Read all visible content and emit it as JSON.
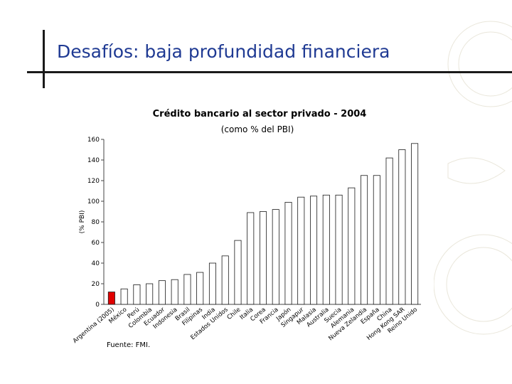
{
  "slide": {
    "title": "Desafíos: baja profundidad financiera",
    "source": "Fuente: FMI."
  },
  "chart_data": {
    "type": "bar",
    "title": "Crédito bancario al sector privado - 2004",
    "subtitle": "(como % del PBI)",
    "ylabel": "(% PBI)",
    "xlabel": "",
    "ylim": [
      0,
      160
    ],
    "yticks": [
      0,
      20,
      40,
      60,
      80,
      100,
      120,
      140,
      160
    ],
    "grid": false,
    "categories": [
      "Argentina (2005)",
      "México",
      "Perú",
      "Colombia",
      "Ecuador",
      "Indonesia",
      "Brasil",
      "Filipinas",
      "India",
      "Estados Unidos",
      "Chile",
      "Italia",
      "Corea",
      "Francia",
      "Japón",
      "Singapur",
      "Malasia",
      "Australia",
      "Suecia",
      "Alemania",
      "Nueva Zelandia",
      "España",
      "China",
      "Hong Kong SAR",
      "Reino Unido"
    ],
    "values": [
      12,
      15,
      19,
      20,
      23,
      24,
      29,
      31,
      40,
      47,
      62,
      89,
      90,
      92,
      99,
      104,
      105,
      106,
      106,
      113,
      125,
      125,
      142,
      150,
      156
    ],
    "colors": {
      "highlight": "#e00000",
      "bar": "#ffffff",
      "bar_stroke": "#1a1a1a",
      "title_text": "#1f3a93"
    },
    "highlight_index": 0
  }
}
